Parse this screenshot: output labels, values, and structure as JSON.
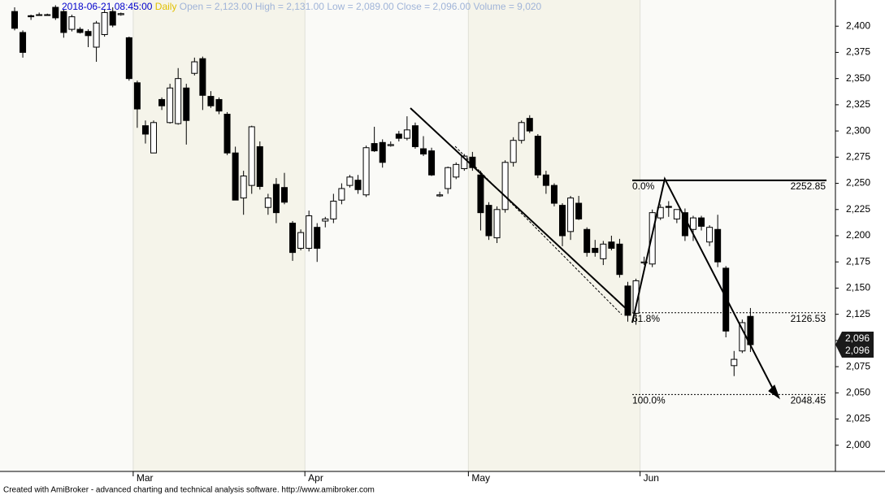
{
  "chart_data": {
    "type": "candlestick",
    "header": {
      "datetime": "2018-06-21 08:45:00",
      "interval": "Daily",
      "quote": [
        "Open = 2,123.00",
        "High = 2,131.00",
        "Low = 2,089.00",
        "Close = 2,096.00",
        "Volume = 9,020"
      ]
    },
    "footer": "Created with AmiBroker - advanced charting and technical analysis software. http://www.amibroker.com",
    "categories": [
      null,
      null,
      null,
      null,
      null,
      null,
      null,
      null,
      null,
      null,
      null,
      null,
      null,
      null,
      null,
      "Mar",
      null,
      null,
      null,
      null,
      null,
      null,
      null,
      null,
      null,
      null,
      null,
      null,
      null,
      null,
      null,
      null,
      null,
      null,
      null,
      null,
      "Apr",
      null,
      null,
      null,
      null,
      null,
      null,
      null,
      null,
      null,
      null,
      null,
      null,
      null,
      null,
      null,
      null,
      null,
      null,
      null,
      "May",
      null,
      null,
      null,
      null,
      null,
      null,
      null,
      null,
      null,
      null,
      null,
      null,
      null,
      null,
      null,
      null,
      null,
      null,
      null,
      null,
      "Jun",
      null,
      null,
      null,
      null,
      null,
      null,
      null,
      null,
      null,
      null,
      null,
      null,
      null
    ],
    "open": [
      2414,
      2394,
      2410,
      2411,
      2411,
      2418,
      2414,
      2397,
      2397,
      2395,
      2380,
      2392,
      2414,
      2411,
      2389,
      2346,
      2305,
      2279,
      2330,
      2308,
      2307,
      2341,
      2355,
      2369,
      2333,
      2330,
      2316,
      2279,
      2236,
      2248,
      2285,
      2227,
      2249,
      2246,
      2212,
      2188,
      2188,
      2208,
      2214,
      2216,
      2234,
      2248,
      2253,
      2239,
      2288,
      2289,
      2286,
      2297,
      2293,
      2305,
      2283,
      2281,
      2238,
      2245,
      2256,
      2264,
      2275,
      2258,
      2229,
      2198,
      2225,
      2270,
      2291,
      2312,
      2295,
      2258,
      2248,
      2229,
      2204,
      2231,
      2206,
      2188,
      2178,
      2194,
      2192,
      2152,
      2126,
      2174,
      2173,
      2217,
      2228,
      2216,
      2222,
      2206,
      2217,
      2194,
      2206,
      2169,
      2076,
      2090,
      2123
    ],
    "high": [
      2418,
      2396,
      2411,
      2413,
      2412,
      2420,
      2416,
      2411,
      2399,
      2397,
      2405,
      2416,
      2418,
      2413,
      2390,
      2348,
      2310,
      2310,
      2332,
      2345,
      2360,
      2345,
      2370,
      2371,
      2338,
      2332,
      2318,
      2285,
      2262,
      2305,
      2290,
      2240,
      2255,
      2260,
      2214,
      2206,
      2224,
      2212,
      2218,
      2240,
      2250,
      2258,
      2258,
      2286,
      2304,
      2292,
      2290,
      2300,
      2314,
      2308,
      2295,
      2284,
      2242,
      2266,
      2270,
      2278,
      2280,
      2262,
      2232,
      2228,
      2272,
      2294,
      2310,
      2315,
      2297,
      2262,
      2250,
      2231,
      2238,
      2238,
      2208,
      2196,
      2195,
      2200,
      2197,
      2156,
      2159,
      2180,
      2225,
      2230,
      2233,
      2225,
      2226,
      2219,
      2219,
      2210,
      2220,
      2171,
      2090,
      2120,
      2131
    ],
    "low": [
      2396,
      2370,
      2406,
      2410,
      2410,
      2406,
      2389,
      2395,
      2393,
      2380,
      2366,
      2390,
      2399,
      2410,
      2348,
      2303,
      2288,
      2279,
      2320,
      2307,
      2306,
      2287,
      2353,
      2320,
      2322,
      2316,
      2277,
      2234,
      2220,
      2240,
      2244,
      2220,
      2212,
      2230,
      2176,
      2186,
      2185,
      2175,
      2208,
      2212,
      2230,
      2246,
      2240,
      2237,
      2280,
      2265,
      2285,
      2290,
      2291,
      2283,
      2276,
      2257,
      2237,
      2240,
      2254,
      2262,
      2262,
      2205,
      2196,
      2193,
      2222,
      2266,
      2288,
      2298,
      2255,
      2240,
      2228,
      2190,
      2196,
      2215,
      2180,
      2180,
      2172,
      2186,
      2160,
      2118,
      2115,
      2172,
      2170,
      2215,
      2218,
      2212,
      2195,
      2195,
      2205,
      2190,
      2170,
      2103,
      2066,
      2088,
      2089
    ],
    "close": [
      2398,
      2375,
      2409,
      2411,
      2411,
      2408,
      2394,
      2409,
      2394,
      2391,
      2403,
      2413,
      2401,
      2412,
      2350,
      2321,
      2297,
      2308,
      2324,
      2341,
      2350,
      2310,
      2366,
      2334,
      2324,
      2319,
      2279,
      2234,
      2257,
      2304,
      2247,
      2236,
      2222,
      2232,
      2184,
      2203,
      2219,
      2188,
      2216,
      2233,
      2245,
      2256,
      2244,
      2284,
      2281,
      2270,
      2287,
      2293,
      2301,
      2285,
      2278,
      2258,
      2239,
      2265,
      2268,
      2276,
      2265,
      2222,
      2200,
      2225,
      2270,
      2291,
      2308,
      2300,
      2258,
      2248,
      2231,
      2200,
      2236,
      2216,
      2184,
      2184,
      2192,
      2188,
      2163,
      2124,
      2157,
      2175,
      2222,
      2227,
      2227,
      2225,
      2200,
      2217,
      2209,
      2208,
      2175,
      2109,
      2082,
      2117,
      2096
    ],
    "up_color": "#ffffff",
    "down_color": "#000000",
    "ylim": [
      1975,
      2425
    ],
    "yticks": [
      {
        "value": 2000,
        "label": "2,000"
      },
      {
        "value": 2025,
        "label": "2,025"
      },
      {
        "value": 2050,
        "label": "2,050"
      },
      {
        "value": 2075,
        "label": "2,075"
      },
      {
        "value": 2100,
        "label": "2,100"
      },
      {
        "value": 2125,
        "label": "2,125"
      },
      {
        "value": 2150,
        "label": "2,150"
      },
      {
        "value": 2175,
        "label": "2,175"
      },
      {
        "value": 2200,
        "label": "2,200"
      },
      {
        "value": 2225,
        "label": "2,225"
      },
      {
        "value": 2250,
        "label": "2,250"
      },
      {
        "value": 2275,
        "label": "2,275"
      },
      {
        "value": 2300,
        "label": "2,300"
      },
      {
        "value": 2325,
        "label": "2,325"
      },
      {
        "value": 2350,
        "label": "2,350"
      },
      {
        "value": 2375,
        "label": "2,375"
      },
      {
        "value": 2400,
        "label": "2,400"
      }
    ],
    "grid": false,
    "fib_levels": [
      {
        "value": 2252.85,
        "ratio": "0.0%"
      },
      {
        "value": 2126.53,
        "ratio": "61.8%"
      },
      {
        "value": 2048.45,
        "ratio": "100.0%"
      }
    ],
    "last_price": {
      "value": 2096,
      "label": "2,096"
    }
  }
}
